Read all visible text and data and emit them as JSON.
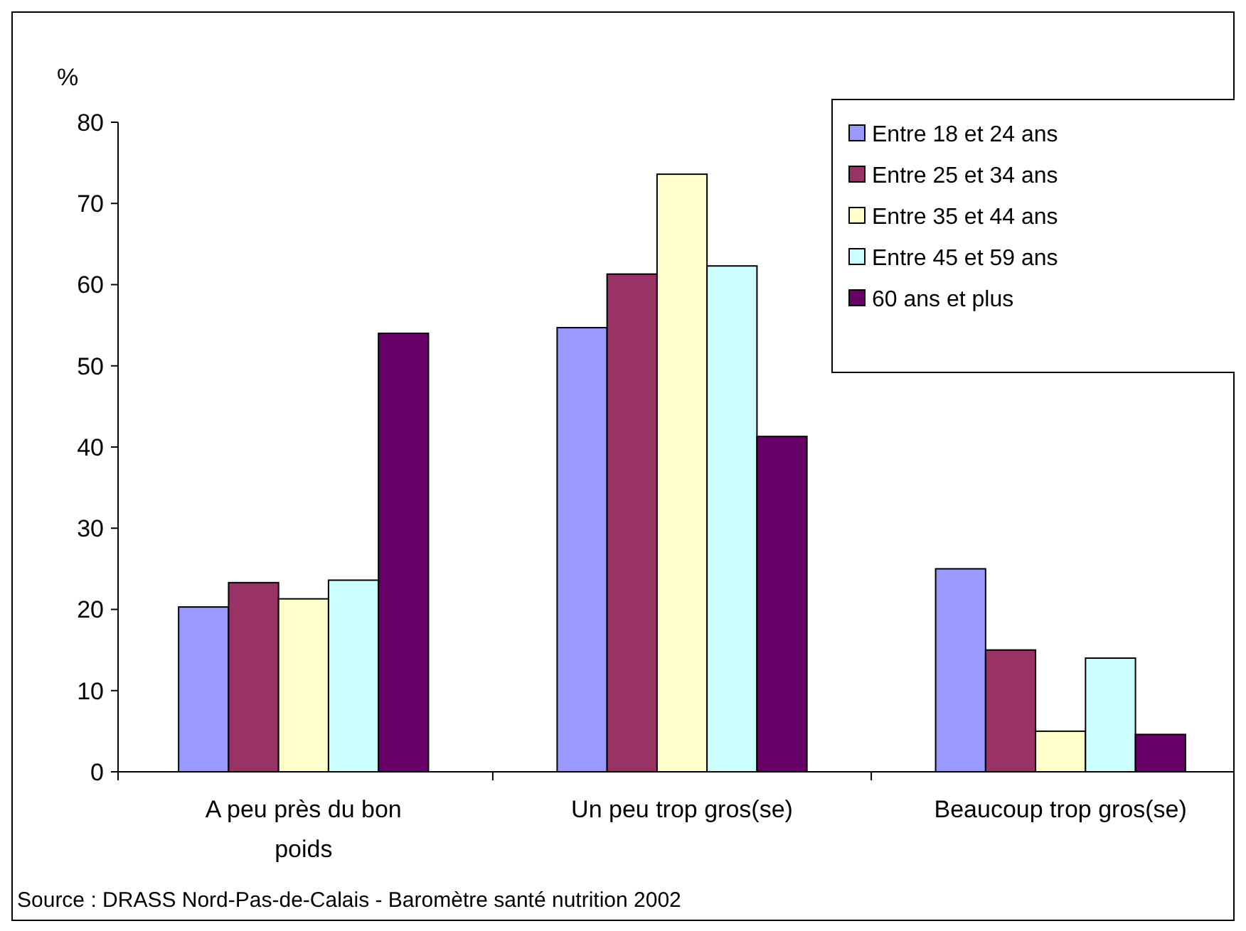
{
  "chart_data": {
    "type": "bar",
    "ylabel": "%",
    "categories": [
      "A peu près du bon poids",
      "Un peu trop gros(se)",
      "Beaucoup trop gros(se)"
    ],
    "series": [
      {
        "name": "Entre 18 et 24 ans",
        "color": "#9999ff",
        "values": [
          20.3,
          54.7,
          25
        ]
      },
      {
        "name": "Entre 25 et 34 ans",
        "color": "#993366",
        "values": [
          23.3,
          61.3,
          15
        ]
      },
      {
        "name": "Entre 35 et 44 ans",
        "color": "#ffffcc",
        "values": [
          21.3,
          73.6,
          5
        ]
      },
      {
        "name": "Entre 45 et 59 ans",
        "color": "#ccffff",
        "values": [
          23.6,
          62.3,
          14
        ]
      },
      {
        "name": "60 ans et plus",
        "color": "#660066",
        "values": [
          54,
          41.3,
          4.6
        ]
      }
    ],
    "ylim": [
      0,
      80
    ],
    "yticks": [
      0,
      10,
      20,
      30,
      40,
      50,
      60,
      70,
      80
    ],
    "grid": false,
    "legend": "top right",
    "annotations": [
      "Source : DRASS Nord-Pas-de-Calais - Baromètre santé nutrition 2002"
    ]
  }
}
